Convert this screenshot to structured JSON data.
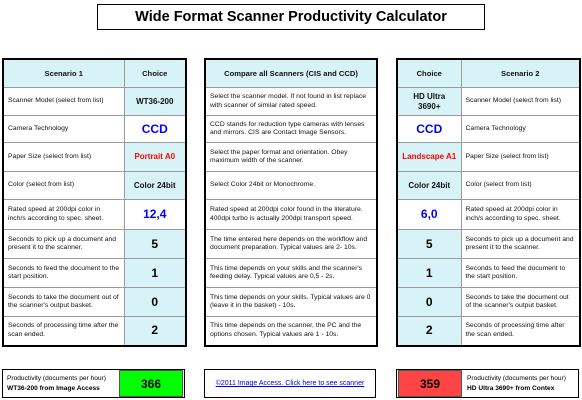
{
  "title": "Wide Format Scanner Productivity Calculator",
  "scenario1": {
    "header_label": "Scenario 1",
    "header_choice": "Choice",
    "rows": [
      {
        "label": "Scanner Model (select from list)",
        "value": "WT36-200"
      },
      {
        "label": "Camera Technology",
        "value": "CCD"
      },
      {
        "label": "Paper Size (select from list)",
        "value": "Portrait A0"
      },
      {
        "label": "Color (select from list)",
        "value": "Color 24bit"
      },
      {
        "label": "Rated speed at 200dpi color in inch/s according to spec. sheet.",
        "value": "12,4"
      },
      {
        "label": "Seconds to pick up a document and present it to the scanner.",
        "value": "5"
      },
      {
        "label": "Seconds to feed the document to the start position.",
        "value": "1"
      },
      {
        "label": "Seconds to take the document out of the scanner's output basket.",
        "value": "0"
      },
      {
        "label": "Seconds of processing time after the scan ended.",
        "value": "2"
      }
    ],
    "result_label": "Productivity (documents per hour)",
    "result_model": "WT36-200 from Image Access",
    "result_value": "366"
  },
  "compare": {
    "header": "Compare all Scanners (CIS and CCD)",
    "rows": [
      "Select the scanner model. If not found in list replace with scanner of similar rated speed.",
      "CCD stands for reduction type cameras with lenses and mirrors. CIS are Contact Image Sensors.",
      "Select the paper format and orientation. Obey maximum width of the scanner.",
      "Select Color 24bit or Monochrome.",
      "Rated speed at 200dpi color found in the literature. 400dpi turbo is actually 200dpi transport speed.",
      "The time entered here depends on the workflow and document preparation. Typical values are 2- 10s.",
      "This time depends on your skills and the scanner's feeding delay. Typical values are 0,5 - 2s.",
      "This time depends on your skills. Typical values are 0 (leave it in the basket) - 10s.",
      "This time depends on the scanner, the PC and the options chosen. Typical values are 1 - 10s."
    ],
    "link_text": "©2011 Image Access. Click here to see scanner"
  },
  "scenario2": {
    "header_label": "Scenario 2",
    "header_choice": "Choice",
    "rows": [
      {
        "label": "Scanner Model (select from list)",
        "value": "HD Ultra 3690+"
      },
      {
        "label": "Camera Technology",
        "value": "CCD"
      },
      {
        "label": "Paper Size (select from list)",
        "value": "Landscape A1"
      },
      {
        "label": "Color (select from list)",
        "value": "Color 24bit"
      },
      {
        "label": "Rated speed at 200dpi color in inch/s according to spec. sheet.",
        "value": "6,0"
      },
      {
        "label": "Seconds to pick up a document and present it to the scanner.",
        "value": "5"
      },
      {
        "label": "Seconds to feed the document to the start position.",
        "value": "1"
      },
      {
        "label": "Seconds to take the document out of the scanner's output basket.",
        "value": "0"
      },
      {
        "label": "Seconds of processing time after the scan ended.",
        "value": "2"
      }
    ],
    "result_label": "Productivity (documents per hour)",
    "result_model": "HD Ultra 3690+ from Contex",
    "result_value": "359"
  },
  "colors": {
    "header_bg": "#d7f3f7",
    "result1_bg": "#00ff00",
    "result2_bg": "#ff4444",
    "blue_value": "#0000ff",
    "red_value": "#ff0000"
  }
}
